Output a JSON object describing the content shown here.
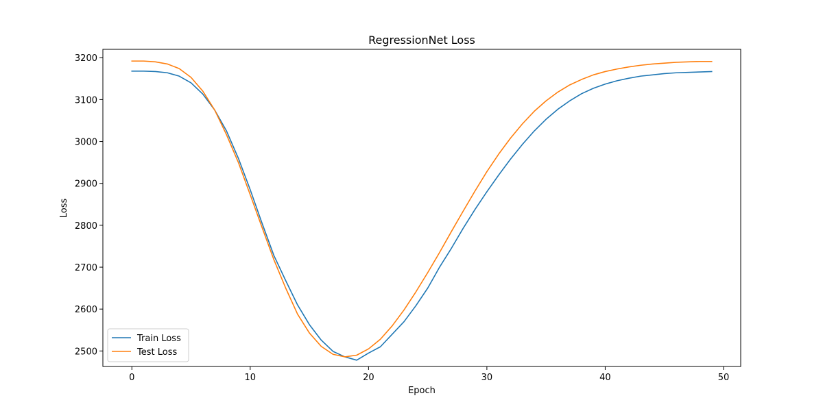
{
  "chart_data": {
    "type": "line",
    "title": "RegressionNet Loss",
    "xlabel": "Epoch",
    "ylabel": "Loss",
    "xlim": [
      -2.45,
      51.45
    ],
    "ylim": [
      2463,
      3220
    ],
    "xticks": [
      0,
      10,
      20,
      30,
      40,
      50
    ],
    "yticks": [
      2500,
      2600,
      2700,
      2800,
      2900,
      3000,
      3100,
      3200
    ],
    "grid": false,
    "legend_position": "lower-left",
    "x": [
      0,
      1,
      2,
      3,
      4,
      5,
      6,
      7,
      8,
      9,
      10,
      11,
      12,
      13,
      14,
      15,
      16,
      17,
      18,
      19,
      20,
      21,
      22,
      23,
      24,
      25,
      26,
      27,
      28,
      29,
      30,
      31,
      32,
      33,
      34,
      35,
      36,
      37,
      38,
      39,
      40,
      41,
      42,
      43,
      44,
      45,
      46,
      47,
      48,
      49
    ],
    "series": [
      {
        "name": "Train Loss",
        "color": "#1f77b4",
        "values": [
          3168,
          3168,
          3167,
          3164,
          3156,
          3140,
          3113,
          3075,
          3025,
          2960,
          2885,
          2805,
          2728,
          2668,
          2610,
          2563,
          2526,
          2499,
          2486,
          2478,
          2495,
          2510,
          2540,
          2570,
          2608,
          2650,
          2700,
          2745,
          2793,
          2838,
          2880,
          2920,
          2958,
          2993,
          3025,
          3053,
          3077,
          3097,
          3114,
          3127,
          3137,
          3145,
          3151,
          3156,
          3159,
          3162,
          3164,
          3165,
          3166,
          3167
        ]
      },
      {
        "name": "Test Loss",
        "color": "#ff7f0e",
        "values": [
          3192,
          3192,
          3190,
          3185,
          3174,
          3153,
          3120,
          3075,
          3016,
          2950,
          2873,
          2795,
          2718,
          2650,
          2588,
          2543,
          2511,
          2492,
          2486,
          2490,
          2505,
          2528,
          2560,
          2598,
          2641,
          2687,
          2735,
          2785,
          2834,
          2882,
          2928,
          2970,
          3008,
          3042,
          3072,
          3097,
          3118,
          3135,
          3148,
          3159,
          3167,
          3173,
          3178,
          3182,
          3185,
          3187,
          3189,
          3190,
          3191,
          3191
        ]
      }
    ]
  }
}
